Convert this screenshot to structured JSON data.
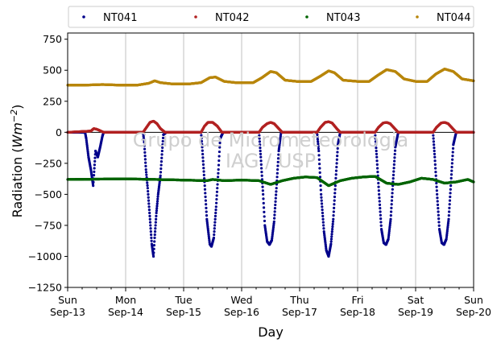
{
  "chart_data": {
    "type": "scatter",
    "xlabel": "Day",
    "ylabel_main": "Radiation (",
    "ylabel_unit": "Wm",
    "ylabel_exp": "−2",
    "ylabel_close": ")",
    "ylim": [
      -1250,
      800
    ],
    "yticks": [
      {
        "value": 750,
        "label": "750"
      },
      {
        "value": 500,
        "label": "500"
      },
      {
        "value": 250,
        "label": "250"
      },
      {
        "value": 0,
        "label": "0"
      },
      {
        "value": -250,
        "label": "−250"
      },
      {
        "value": -500,
        "label": "−500"
      },
      {
        "value": -750,
        "label": "−750"
      },
      {
        "value": -1000,
        "label": "−1000"
      },
      {
        "value": -1250,
        "label": "−1250"
      }
    ],
    "xlim_days": [
      0,
      7
    ],
    "xticks": [
      {
        "day": 0,
        "line1": "Sun",
        "line2": "Sep-13"
      },
      {
        "day": 1,
        "line1": "Mon",
        "line2": "Sep-14"
      },
      {
        "day": 2,
        "line1": "Tue",
        "line2": "Sep-15"
      },
      {
        "day": 3,
        "line1": "Wed",
        "line2": "Sep-16"
      },
      {
        "day": 4,
        "line1": "Thu",
        "line2": "Sep-17"
      },
      {
        "day": 5,
        "line1": "Fri",
        "line2": "Sep-18"
      },
      {
        "day": 6,
        "line1": "Sat",
        "line2": "Sep-19"
      },
      {
        "day": 7,
        "line1": "Sun",
        "line2": "Sep-20"
      }
    ],
    "grid": "vertical",
    "legend_position": "top",
    "watermark": [
      "Grupo de Micrometeorologia",
      "IAG / USP"
    ],
    "series": [
      {
        "name": "NT041",
        "color": "#00008b",
        "points": [
          [
            0.0,
            0
          ],
          [
            0.3,
            0
          ],
          [
            0.32,
            -50
          ],
          [
            0.36,
            -200
          ],
          [
            0.4,
            -300
          ],
          [
            0.44,
            -430
          ],
          [
            0.48,
            -150
          ],
          [
            0.52,
            -200
          ],
          [
            0.56,
            -120
          ],
          [
            0.6,
            -30
          ],
          [
            0.62,
            0
          ],
          [
            1.3,
            0
          ],
          [
            1.32,
            -80
          ],
          [
            1.35,
            -300
          ],
          [
            1.38,
            -450
          ],
          [
            1.42,
            -700
          ],
          [
            1.45,
            -900
          ],
          [
            1.48,
            -1000
          ],
          [
            1.5,
            -850
          ],
          [
            1.53,
            -650
          ],
          [
            1.56,
            -500
          ],
          [
            1.6,
            -350
          ],
          [
            1.63,
            -150
          ],
          [
            1.65,
            -20
          ],
          [
            1.7,
            0
          ],
          [
            2.3,
            0
          ],
          [
            2.32,
            -120
          ],
          [
            2.36,
            -400
          ],
          [
            2.4,
            -700
          ],
          [
            2.45,
            -900
          ],
          [
            2.48,
            -920
          ],
          [
            2.52,
            -850
          ],
          [
            2.56,
            -600
          ],
          [
            2.6,
            -300
          ],
          [
            2.63,
            -50
          ],
          [
            2.68,
            0
          ],
          [
            3.3,
            0
          ],
          [
            3.33,
            -200
          ],
          [
            3.37,
            -500
          ],
          [
            3.4,
            -750
          ],
          [
            3.44,
            -880
          ],
          [
            3.48,
            -905
          ],
          [
            3.52,
            -870
          ],
          [
            3.56,
            -720
          ],
          [
            3.6,
            -450
          ],
          [
            3.64,
            -150
          ],
          [
            3.68,
            0
          ],
          [
            4.3,
            0
          ],
          [
            4.33,
            -150
          ],
          [
            4.37,
            -500
          ],
          [
            4.42,
            -800
          ],
          [
            4.46,
            -950
          ],
          [
            4.5,
            -1000
          ],
          [
            4.54,
            -900
          ],
          [
            4.58,
            -700
          ],
          [
            4.62,
            -400
          ],
          [
            4.66,
            -100
          ],
          [
            4.7,
            0
          ],
          [
            5.3,
            0
          ],
          [
            5.33,
            -200
          ],
          [
            5.37,
            -500
          ],
          [
            5.41,
            -780
          ],
          [
            5.45,
            -890
          ],
          [
            5.49,
            -905
          ],
          [
            5.53,
            -860
          ],
          [
            5.57,
            -700
          ],
          [
            5.61,
            -400
          ],
          [
            5.65,
            -120
          ],
          [
            5.7,
            0
          ],
          [
            6.3,
            0
          ],
          [
            6.33,
            -200
          ],
          [
            6.37,
            -500
          ],
          [
            6.41,
            -780
          ],
          [
            6.45,
            -890
          ],
          [
            6.49,
            -905
          ],
          [
            6.53,
            -860
          ],
          [
            6.57,
            -700
          ],
          [
            6.61,
            -400
          ],
          [
            6.65,
            -100
          ],
          [
            6.7,
            0
          ],
          [
            7.0,
            0
          ]
        ]
      },
      {
        "name": "NT042",
        "color": "#b22222",
        "points": [
          [
            0.0,
            0
          ],
          [
            0.4,
            10
          ],
          [
            0.45,
            30
          ],
          [
            0.5,
            25
          ],
          [
            0.55,
            15
          ],
          [
            0.62,
            0
          ],
          [
            1.3,
            0
          ],
          [
            1.36,
            40
          ],
          [
            1.42,
            80
          ],
          [
            1.48,
            90
          ],
          [
            1.54,
            70
          ],
          [
            1.6,
            30
          ],
          [
            1.68,
            0
          ],
          [
            2.3,
            0
          ],
          [
            2.36,
            50
          ],
          [
            2.42,
            80
          ],
          [
            2.5,
            80
          ],
          [
            2.58,
            50
          ],
          [
            2.66,
            0
          ],
          [
            3.3,
            0
          ],
          [
            3.36,
            40
          ],
          [
            3.44,
            70
          ],
          [
            3.5,
            80
          ],
          [
            3.56,
            70
          ],
          [
            3.64,
            30
          ],
          [
            3.7,
            0
          ],
          [
            4.3,
            0
          ],
          [
            4.36,
            40
          ],
          [
            4.44,
            80
          ],
          [
            4.5,
            85
          ],
          [
            4.56,
            75
          ],
          [
            4.64,
            30
          ],
          [
            4.7,
            0
          ],
          [
            5.3,
            0
          ],
          [
            5.36,
            40
          ],
          [
            5.44,
            75
          ],
          [
            5.5,
            80
          ],
          [
            5.56,
            70
          ],
          [
            5.64,
            30
          ],
          [
            5.7,
            0
          ],
          [
            6.3,
            0
          ],
          [
            6.36,
            40
          ],
          [
            6.44,
            75
          ],
          [
            6.5,
            80
          ],
          [
            6.56,
            70
          ],
          [
            6.64,
            30
          ],
          [
            6.7,
            0
          ],
          [
            7.0,
            0
          ]
        ]
      },
      {
        "name": "NT043",
        "color": "#006400",
        "points": [
          [
            0.0,
            -380
          ],
          [
            1.0,
            -375
          ],
          [
            2.0,
            -385
          ],
          [
            2.4,
            -390
          ],
          [
            2.5,
            -380
          ],
          [
            2.7,
            -390
          ],
          [
            3.0,
            -385
          ],
          [
            3.3,
            -390
          ],
          [
            3.5,
            -420
          ],
          [
            3.7,
            -390
          ],
          [
            3.9,
            -370
          ],
          [
            4.1,
            -360
          ],
          [
            4.3,
            -365
          ],
          [
            4.5,
            -430
          ],
          [
            4.7,
            -390
          ],
          [
            4.9,
            -370
          ],
          [
            5.1,
            -360
          ],
          [
            5.3,
            -355
          ],
          [
            5.5,
            -410
          ],
          [
            5.7,
            -420
          ],
          [
            5.9,
            -400
          ],
          [
            6.1,
            -370
          ],
          [
            6.3,
            -380
          ],
          [
            6.5,
            -410
          ],
          [
            6.7,
            -400
          ],
          [
            6.9,
            -380
          ],
          [
            7.0,
            -400
          ]
        ]
      },
      {
        "name": "NT044",
        "color": "#b8860b",
        "points": [
          [
            0.0,
            380
          ],
          [
            0.3,
            380
          ],
          [
            0.6,
            385
          ],
          [
            0.9,
            380
          ],
          [
            1.2,
            380
          ],
          [
            1.4,
            395
          ],
          [
            1.5,
            415
          ],
          [
            1.6,
            400
          ],
          [
            1.8,
            390
          ],
          [
            2.1,
            390
          ],
          [
            2.3,
            400
          ],
          [
            2.45,
            440
          ],
          [
            2.55,
            445
          ],
          [
            2.7,
            410
          ],
          [
            2.9,
            400
          ],
          [
            3.2,
            400
          ],
          [
            3.35,
            440
          ],
          [
            3.5,
            490
          ],
          [
            3.6,
            480
          ],
          [
            3.75,
            420
          ],
          [
            3.95,
            410
          ],
          [
            4.2,
            410
          ],
          [
            4.35,
            450
          ],
          [
            4.5,
            495
          ],
          [
            4.6,
            480
          ],
          [
            4.75,
            420
          ],
          [
            5.0,
            410
          ],
          [
            5.2,
            410
          ],
          [
            5.35,
            460
          ],
          [
            5.5,
            505
          ],
          [
            5.65,
            490
          ],
          [
            5.8,
            430
          ],
          [
            6.0,
            410
          ],
          [
            6.2,
            410
          ],
          [
            6.35,
            470
          ],
          [
            6.5,
            510
          ],
          [
            6.65,
            490
          ],
          [
            6.8,
            430
          ],
          [
            7.0,
            415
          ]
        ]
      }
    ]
  }
}
